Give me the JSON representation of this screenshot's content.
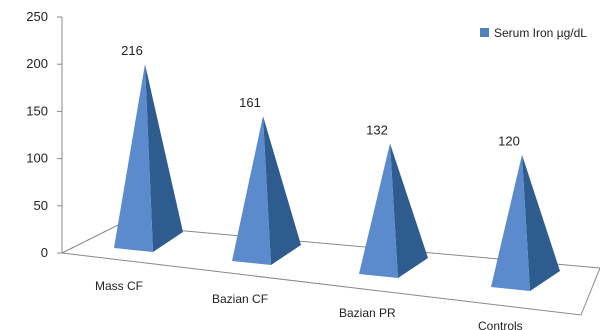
{
  "chart_data": {
    "type": "bar",
    "style": "3d-pyramid",
    "categories": [
      "Mass CF",
      "Bazian CF",
      "Bazian PR",
      "Controls"
    ],
    "series": [
      {
        "name": "Serum Iron µg/dL",
        "values": [
          216,
          161,
          132,
          120
        ]
      }
    ],
    "data_labels": [
      "216",
      "161",
      "132",
      "120"
    ],
    "ylim": [
      0,
      250
    ],
    "yticks": [
      0,
      50,
      100,
      150,
      200,
      250
    ],
    "xlabel": "",
    "ylabel": "",
    "grid": false,
    "legend_position": "top-right",
    "colors": {
      "front": "#5B8ACD",
      "side": "#2E5C8F",
      "legend_swatch": "#4F81BD",
      "axis": "#888888"
    }
  }
}
